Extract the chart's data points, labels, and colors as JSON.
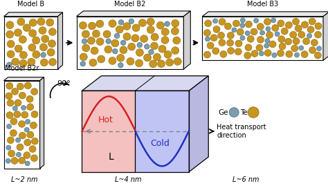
{
  "bg_color": "#ffffff",
  "te_color": "#c8961e",
  "te_edge": "#8a6010",
  "ge_color": "#7a9eb0",
  "ge_edge": "#3a6070",
  "hot_color": "#d42020",
  "cold_color": "#2030c0",
  "hot_fill": "#f5c0c0",
  "cold_fill": "#c0c4f5",
  "top3d_color": "#e8e8e8",
  "right3d_color": "#d0d0d0",
  "box3d_top": "#d8d8f0",
  "box3d_right": "#b8b8e0",
  "model_labels": [
    "Model B",
    "Model B2",
    "Model B3",
    "Model B2r"
  ],
  "length_labels": [
    "L~2 nm",
    "L~4 nm",
    "L~6 nm"
  ],
  "ge_label": "Ge",
  "te_label": "Te",
  "hot_label": "Hot",
  "cold_label": "Cold",
  "L_label": "L",
  "heat_label": "Heat transport\ndirection",
  "rot_label": "90°"
}
